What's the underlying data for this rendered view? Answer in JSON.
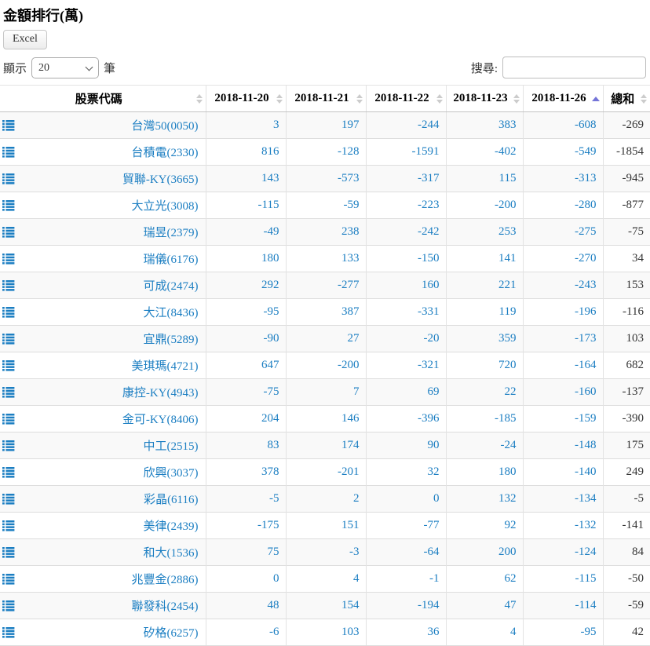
{
  "page": {
    "title": "金額排行(萬)",
    "excel_button_label": "Excel"
  },
  "controls": {
    "length_label_before": "顯示",
    "length_value": "20",
    "length_label_after": "筆",
    "search_label": "搜尋:",
    "search_value": ""
  },
  "colors": {
    "link_blue": "#1b7ec2",
    "total_text": "#333333",
    "sort_inactive": "#cccccc",
    "sort_active": "#7474d8"
  },
  "table": {
    "columns": [
      "股票代碼",
      "2018-11-20",
      "2018-11-21",
      "2018-11-22",
      "2018-11-23",
      "2018-11-26",
      "總和"
    ],
    "sorted_column": "2018-11-26",
    "sort_direction": "asc",
    "rows": [
      {
        "stock": "台灣50(0050)",
        "values": [
          3,
          197,
          -244,
          383,
          -608,
          -269
        ]
      },
      {
        "stock": "台積電(2330)",
        "values": [
          816,
          -128,
          -1591,
          -402,
          -549,
          -1854
        ]
      },
      {
        "stock": "貿聯-KY(3665)",
        "values": [
          143,
          -573,
          -317,
          115,
          -313,
          -945
        ]
      },
      {
        "stock": "大立光(3008)",
        "values": [
          -115,
          -59,
          -223,
          -200,
          -280,
          -877
        ]
      },
      {
        "stock": "瑞昱(2379)",
        "values": [
          -49,
          238,
          -242,
          253,
          -275,
          -75
        ]
      },
      {
        "stock": "瑞儀(6176)",
        "values": [
          180,
          133,
          -150,
          141,
          -270,
          34
        ]
      },
      {
        "stock": "可成(2474)",
        "values": [
          292,
          -277,
          160,
          221,
          -243,
          153
        ]
      },
      {
        "stock": "大江(8436)",
        "values": [
          -95,
          387,
          -331,
          119,
          -196,
          -116
        ]
      },
      {
        "stock": "宜鼎(5289)",
        "values": [
          -90,
          27,
          -20,
          359,
          -173,
          103
        ]
      },
      {
        "stock": "美琪瑪(4721)",
        "values": [
          647,
          -200,
          -321,
          720,
          -164,
          682
        ]
      },
      {
        "stock": "康控-KY(4943)",
        "values": [
          -75,
          7,
          69,
          22,
          -160,
          -137
        ]
      },
      {
        "stock": "金可-KY(8406)",
        "values": [
          204,
          146,
          -396,
          -185,
          -159,
          -390
        ]
      },
      {
        "stock": "中工(2515)",
        "values": [
          83,
          174,
          90,
          -24,
          -148,
          175
        ]
      },
      {
        "stock": "欣興(3037)",
        "values": [
          378,
          -201,
          32,
          180,
          -140,
          249
        ]
      },
      {
        "stock": "彩晶(6116)",
        "values": [
          -5,
          2,
          0,
          132,
          -134,
          -5
        ]
      },
      {
        "stock": "美律(2439)",
        "values": [
          -175,
          151,
          -77,
          92,
          -132,
          -141
        ]
      },
      {
        "stock": "和大(1536)",
        "values": [
          75,
          -3,
          -64,
          200,
          -124,
          84
        ]
      },
      {
        "stock": "兆豐金(2886)",
        "values": [
          0,
          4,
          -1,
          62,
          -115,
          -50
        ]
      },
      {
        "stock": "聯發科(2454)",
        "values": [
          48,
          154,
          -194,
          47,
          -114,
          -59
        ]
      },
      {
        "stock": "矽格(6257)",
        "values": [
          -6,
          103,
          36,
          4,
          -95,
          42
        ]
      }
    ]
  }
}
